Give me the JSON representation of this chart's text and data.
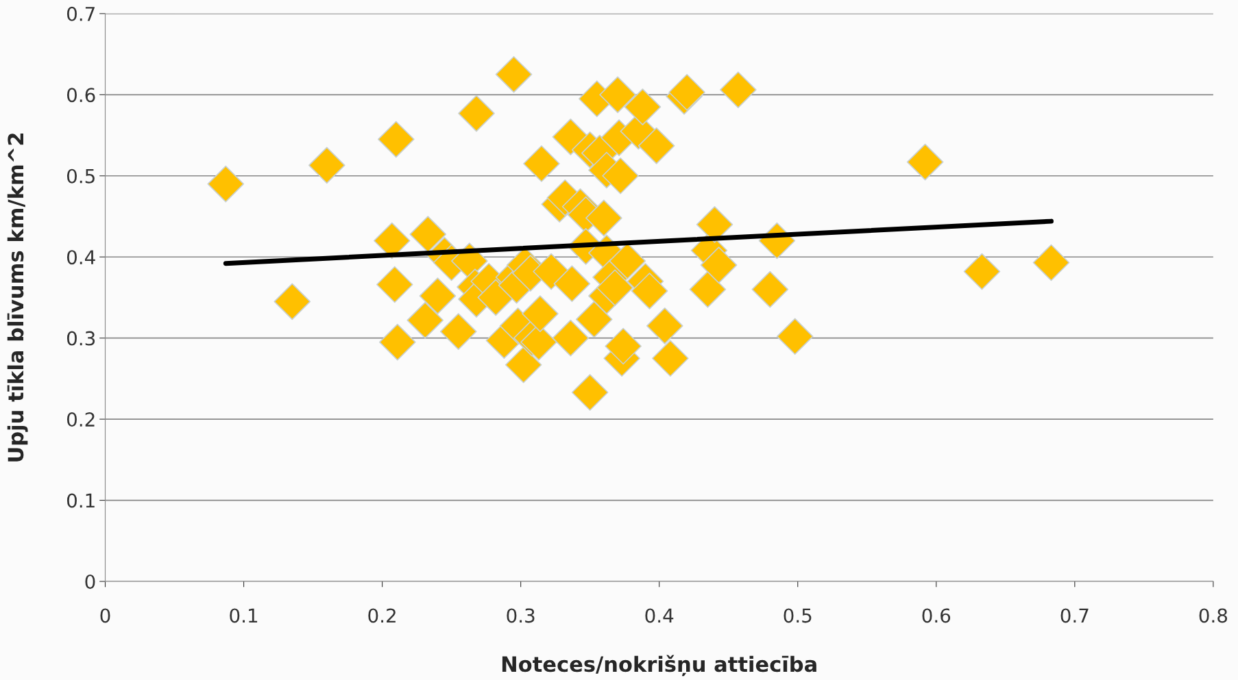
{
  "chart_data": {
    "type": "scatter",
    "xlabel": "Noteces/nokrišņu attiecība",
    "ylabel": "Upju tīkla blīvums km/km^2",
    "xlim": [
      0,
      0.8
    ],
    "xticks": [
      0,
      0.1,
      0.2,
      0.3,
      0.4,
      0.5,
      0.6,
      0.7,
      0.8
    ],
    "ylim": [
      0,
      0.7
    ],
    "yticks": [
      0,
      0.1,
      0.2,
      0.3,
      0.4,
      0.5,
      0.6,
      0.7
    ],
    "grid": "y",
    "legend": false,
    "marker": "diamond",
    "series": [
      {
        "color": "#ffc000",
        "x": [
          0.087,
          0.135,
          0.16,
          0.21,
          0.207,
          0.209,
          0.211,
          0.233,
          0.231,
          0.24,
          0.245,
          0.25,
          0.255,
          0.263,
          0.268,
          0.267,
          0.268,
          0.277,
          0.282,
          0.288,
          0.295,
          0.295,
          0.297,
          0.298,
          0.302,
          0.303,
          0.307,
          0.308,
          0.313,
          0.314,
          0.315,
          0.322,
          0.328,
          0.332,
          0.336,
          0.336,
          0.337,
          0.343,
          0.347,
          0.347,
          0.35,
          0.35,
          0.353,
          0.355,
          0.357,
          0.36,
          0.362,
          0.362,
          0.362,
          0.365,
          0.368,
          0.37,
          0.371,
          0.372,
          0.373,
          0.374,
          0.377,
          0.385,
          0.388,
          0.39,
          0.393,
          0.398,
          0.404,
          0.408,
          0.418,
          0.42,
          0.435,
          0.436,
          0.44,
          0.443,
          0.457,
          0.48,
          0.485,
          0.498,
          0.592,
          0.633,
          0.683
        ],
        "values": [
          0.49,
          0.345,
          0.513,
          0.545,
          0.42,
          0.366,
          0.295,
          0.428,
          0.322,
          0.352,
          0.402,
          0.393,
          0.308,
          0.395,
          0.577,
          0.363,
          0.348,
          0.37,
          0.35,
          0.297,
          0.625,
          0.375,
          0.365,
          0.315,
          0.267,
          0.39,
          0.38,
          0.3,
          0.295,
          0.33,
          0.515,
          0.382,
          0.465,
          0.473,
          0.548,
          0.3,
          0.367,
          0.462,
          0.452,
          0.413,
          0.532,
          0.233,
          0.323,
          0.595,
          0.528,
          0.448,
          0.507,
          0.405,
          0.352,
          0.375,
          0.362,
          0.6,
          0.547,
          0.5,
          0.275,
          0.29,
          0.395,
          0.555,
          0.585,
          0.37,
          0.358,
          0.537,
          0.315,
          0.275,
          0.598,
          0.603,
          0.36,
          0.408,
          0.44,
          0.39,
          0.606,
          0.36,
          0.42,
          0.302,
          0.517,
          0.382,
          0.393
        ]
      },
      {
        "type": "line",
        "color": "#000000",
        "marker": "none",
        "x": [
          0.087,
          0.683
        ],
        "values": [
          0.392,
          0.444
        ]
      }
    ]
  }
}
